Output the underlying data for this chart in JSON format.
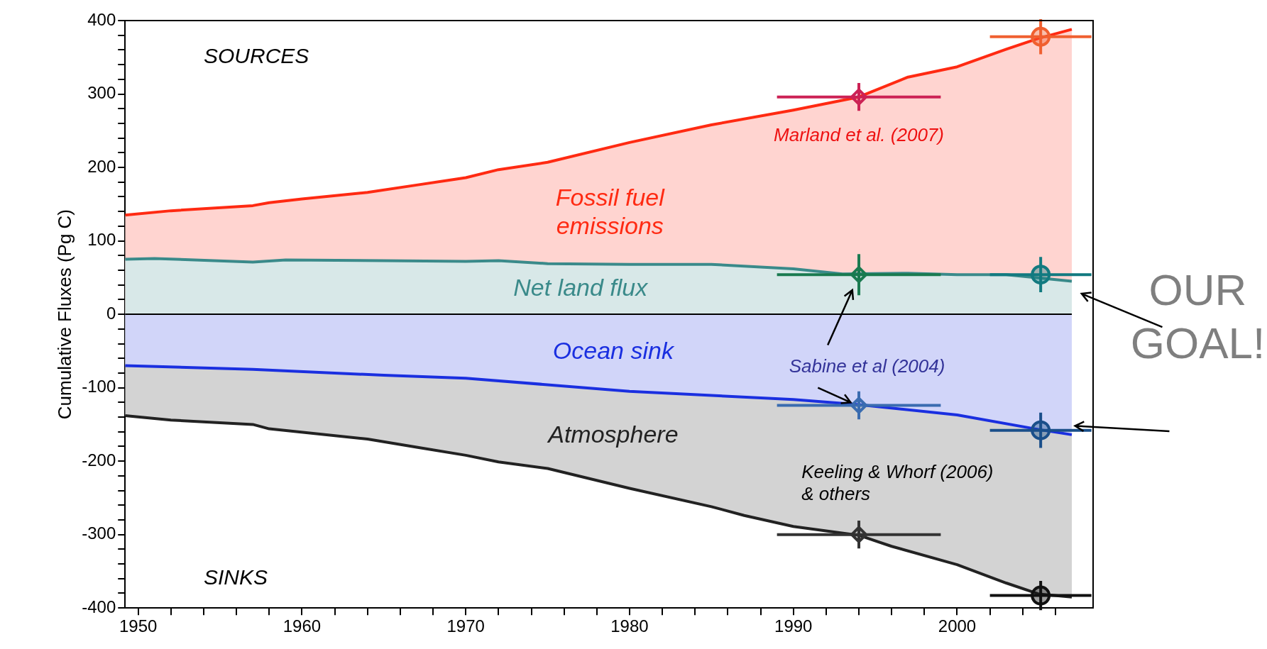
{
  "chart_data": {
    "type": "area",
    "ylabel": "Cumulative Fluxes (Pg C)",
    "xlim": [
      1949.2,
      2008.3
    ],
    "ylim": [
      -400,
      400
    ],
    "xticks": [
      1950,
      {
        "value": 1952,
        "label": null
      },
      {
        "value": 1954,
        "label": null
      },
      {
        "value": 1956,
        "label": null
      },
      {
        "value": 1958,
        "label": null
      },
      1960,
      {
        "value": 1962,
        "label": null
      },
      {
        "value": 1964,
        "label": null
      },
      {
        "value": 1966,
        "label": null
      },
      {
        "value": 1968,
        "label": null
      },
      1970,
      {
        "value": 1972,
        "label": null
      },
      {
        "value": 1974,
        "label": null
      },
      {
        "value": 1976,
        "label": null
      },
      {
        "value": 1978,
        "label": null
      },
      1980,
      {
        "value": 1982,
        "label": null
      },
      {
        "value": 1984,
        "label": null
      },
      {
        "value": 1986,
        "label": null
      },
      {
        "value": 1988,
        "label": null
      },
      1990,
      {
        "value": 1992,
        "label": null
      },
      {
        "value": 1994,
        "label": null
      },
      {
        "value": 1996,
        "label": null
      },
      {
        "value": 1998,
        "label": null
      },
      2000,
      {
        "value": 2002,
        "label": null
      },
      {
        "value": 2004,
        "label": null
      },
      {
        "value": 2006,
        "label": null
      }
    ],
    "yticks": [
      -400,
      {
        "value": -380,
        "label": null
      },
      {
        "value": -360,
        "label": null
      },
      {
        "value": -340,
        "label": null
      },
      {
        "value": -320,
        "label": null
      },
      -300,
      {
        "value": -280,
        "label": null
      },
      {
        "value": -260,
        "label": null
      },
      {
        "value": -240,
        "label": null
      },
      {
        "value": -220,
        "label": null
      },
      -200,
      {
        "value": -180,
        "label": null
      },
      {
        "value": -160,
        "label": null
      },
      {
        "value": -140,
        "label": null
      },
      {
        "value": -120,
        "label": null
      },
      -100,
      {
        "value": -80,
        "label": null
      },
      {
        "value": -60,
        "label": null
      },
      {
        "value": -40,
        "label": null
      },
      {
        "value": -20,
        "label": null
      },
      0,
      {
        "value": 20,
        "label": null
      },
      {
        "value": 40,
        "label": null
      },
      {
        "value": 60,
        "label": null
      },
      {
        "value": 80,
        "label": null
      },
      100,
      {
        "value": 120,
        "label": null
      },
      {
        "value": 140,
        "label": null
      },
      {
        "value": 160,
        "label": null
      },
      {
        "value": 180,
        "label": null
      },
      200,
      {
        "value": 220,
        "label": null
      },
      {
        "value": 240,
        "label": null
      },
      {
        "value": 260,
        "label": null
      },
      {
        "value": 280,
        "label": null
      },
      300,
      {
        "value": 320,
        "label": null
      },
      {
        "value": 340,
        "label": null
      },
      {
        "value": 360,
        "label": null
      },
      {
        "value": 380,
        "label": null
      },
      400
    ],
    "series": [
      {
        "name": "Fossil fuel\nemissions",
        "color": "#ff2a12",
        "x": [
          1949.2,
          1952,
          1957,
          1958,
          1960,
          1964,
          1967,
          1970,
          1972,
          1975,
          1980,
          1985,
          1990,
          1994,
          1997,
          2000,
          2003,
          2005,
          2007
        ],
        "values": [
          135,
          141,
          148,
          152,
          157,
          166,
          176,
          186,
          197,
          207,
          234,
          258,
          278,
          296,
          323,
          337,
          361,
          376,
          388
        ]
      },
      {
        "name": "Net land flux",
        "color": "#3a8a8a",
        "x": [
          1949.2,
          1951,
          1957,
          1959,
          1965,
          1970,
          1972,
          1975,
          1980,
          1985,
          1990,
          1993,
          1997,
          2000,
          2003,
          2007
        ],
        "values": [
          75,
          76,
          71,
          74,
          73,
          72,
          73,
          69,
          68,
          68,
          62,
          55,
          56,
          54,
          54,
          45
        ]
      },
      {
        "name": "Ocean sink",
        "color": "#1a2fe0",
        "x": [
          1949.2,
          1957,
          1965,
          1970,
          1980,
          1990,
          1994,
          2000,
          2005,
          2007
        ],
        "values": [
          -70,
          -75,
          -83,
          -87,
          -105,
          -116,
          -123,
          -137,
          -157,
          -164
        ]
      },
      {
        "name": "Atmosphere",
        "color": "#222222",
        "x": [
          1949.2,
          1952,
          1957,
          1958,
          1964,
          1967,
          1970,
          1972,
          1975,
          1980,
          1985,
          1987,
          1990,
          1994,
          1996,
          2000,
          2003,
          2005,
          2007
        ],
        "values": [
          -138,
          -144,
          -150,
          -156,
          -170,
          -181,
          -192,
          -201,
          -210,
          -237,
          -262,
          -274,
          -289,
          -301,
          -316,
          -341,
          -366,
          -381,
          -385
        ]
      },
      {
        "type": "scatter",
        "marker": "diamond",
        "x": [
          1994,
          1994,
          1994,
          1994
        ],
        "values": [
          296,
          54,
          -124,
          -300
        ],
        "colors": [
          "#cc2255",
          "#1a7a50",
          "#3a6cb0",
          "#333333"
        ],
        "errors": [
          19,
          28,
          19,
          19
        ],
        "xerrors": [
          5,
          5,
          5,
          5
        ]
      },
      {
        "type": "scatter",
        "marker": "circle",
        "x": [
          2005.1,
          2005.1,
          2005.1,
          2005.1
        ],
        "values": [
          378,
          54,
          -158,
          -383
        ],
        "colors": [
          "#f06030",
          "#127a80",
          "#1a4f8a",
          "#111111"
        ],
        "errors": [
          24,
          24,
          24,
          20
        ],
        "xerrors": [
          3.1,
          3.1,
          3.1,
          3.1
        ]
      }
    ],
    "ref_lines": [
      {
        "axis": "y",
        "value": 0,
        "color": "#000000"
      }
    ],
    "annotations": [
      "SOURCES",
      "SINKS",
      {
        "text": "Marland et al. (2007)",
        "x": 1994,
        "y": 296
      },
      "Sabine et al (2004)",
      "Keeling & Whorf (2006)\n& others",
      "OUR\nGOAL!"
    ],
    "legend": false,
    "grid": false
  }
}
